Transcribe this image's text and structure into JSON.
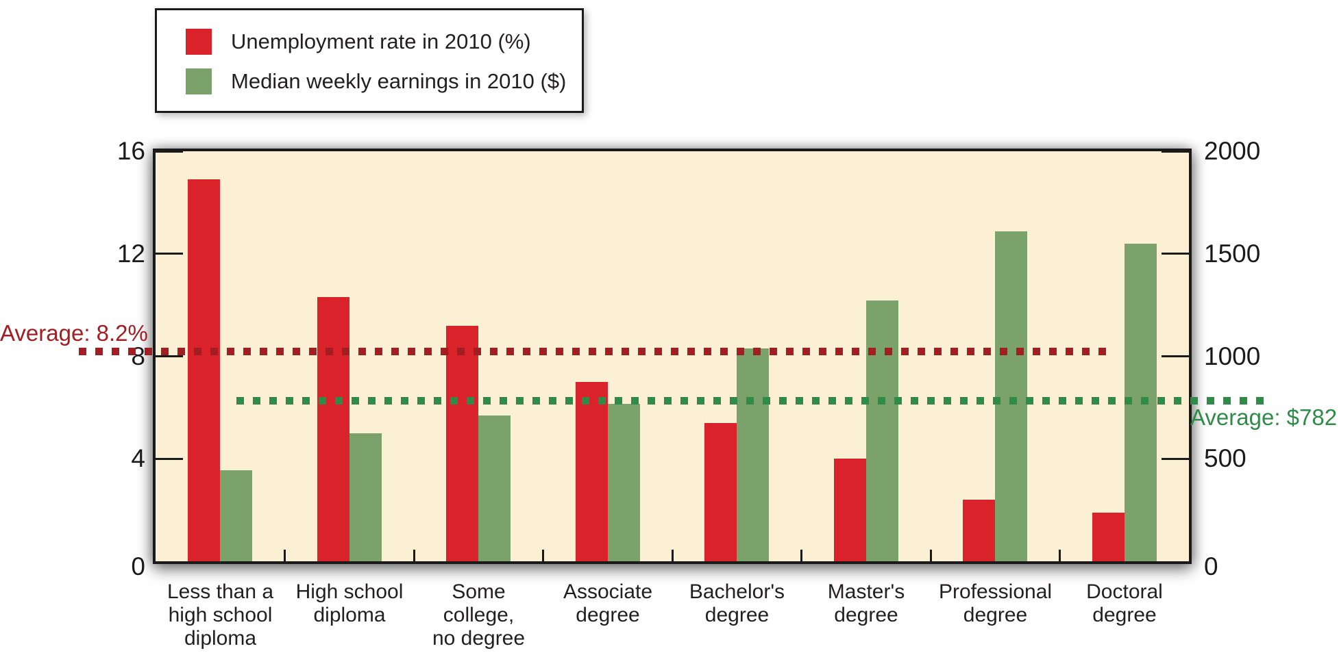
{
  "legend": {
    "items": [
      {
        "label": "Unemployment rate in 2010 (%)",
        "color": "#d9222a"
      },
      {
        "label": "Median weekly earnings in 2010 ($)",
        "color": "#7ca26b"
      }
    ]
  },
  "chart_data": {
    "type": "bar",
    "title": "",
    "categories": [
      "Less than a\nhigh school\ndiploma",
      "High school\ndiploma",
      "Some\ncollege,\nno degree",
      "Associate\ndegree",
      "Bachelor's\ndegree",
      "Master's\ndegree",
      "Professional\ndegree",
      "Doctoral\ndegree"
    ],
    "series": [
      {
        "name": "Unemployment rate in 2010 (%)",
        "axis": "left",
        "color": "#d9222a",
        "values": [
          14.9,
          10.3,
          9.2,
          7.0,
          5.4,
          4.0,
          2.4,
          1.9
        ]
      },
      {
        "name": "Median weekly earnings in 2010 ($)",
        "axis": "right",
        "color": "#7ca26b",
        "values": [
          444,
          626,
          712,
          767,
          1038,
          1272,
          1610,
          1550
        ]
      }
    ],
    "left_axis": {
      "range": [
        0,
        16
      ],
      "ticks": [
        0,
        4,
        8,
        12,
        16
      ]
    },
    "right_axis": {
      "range": [
        0,
        2000
      ],
      "ticks": [
        0,
        500,
        1000,
        1500,
        2000
      ]
    },
    "average_lines": [
      {
        "label": "Average: 8.2%",
        "value": 8.2,
        "axis": "left",
        "color": "#a31e23"
      },
      {
        "label": "Average: $782",
        "value": 782,
        "axis": "right",
        "color": "#2e8b48"
      }
    ],
    "plot_background": "#fbf0d3",
    "grid": false,
    "legend_position": "top-left"
  }
}
